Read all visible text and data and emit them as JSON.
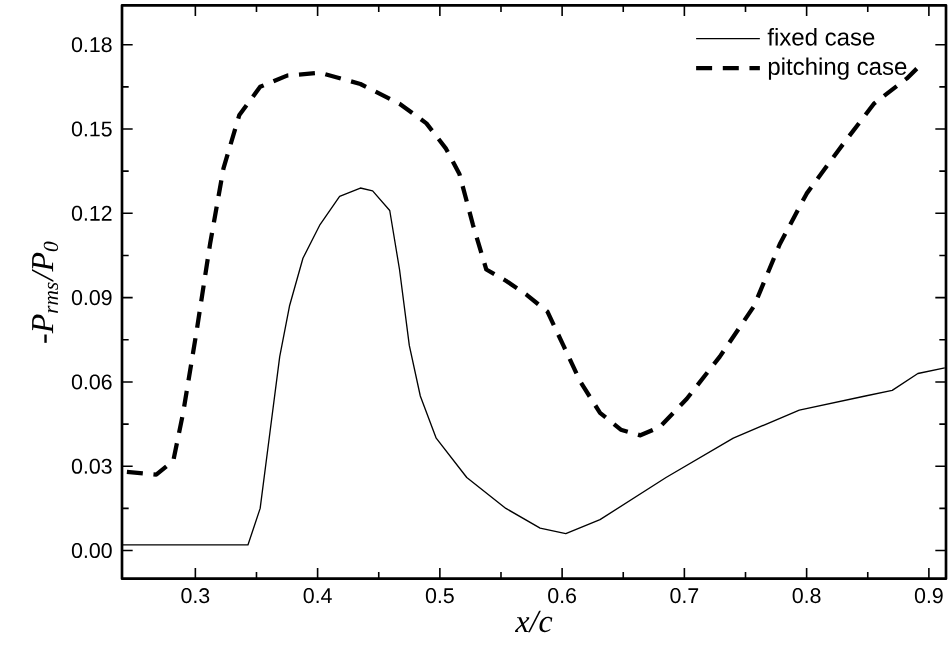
{
  "chart_data": {
    "type": "line",
    "xlabel": "x/c",
    "ylabel": "-P$_{rms}$/P$_{0}$",
    "xlim": [
      0.24,
      0.914
    ],
    "ylim": [
      -0.01,
      0.194
    ],
    "xticks": [
      0.3,
      0.4,
      0.5,
      0.6,
      0.7,
      0.8,
      0.9
    ],
    "yticks": [
      {
        "value": 0,
        "label": "0.00"
      },
      {
        "value": 0.03,
        "label": "0.03"
      },
      {
        "value": 0.06,
        "label": "0.06"
      },
      {
        "value": 0.09,
        "label": "0.09"
      },
      {
        "value": 0.12,
        "label": "0.12"
      },
      {
        "value": 0.15,
        "label": "0.15"
      },
      {
        "value": 0.18,
        "label": "0.18"
      }
    ],
    "legend": "top right",
    "grid": false,
    "marker": "none",
    "series": [
      {
        "name": "fixed case",
        "color": "#000000",
        "line_style": "solid",
        "x": [
          0.24,
          0.343,
          0.353,
          0.361,
          0.369,
          0.377,
          0.388,
          0.402,
          0.418,
          0.435,
          0.445,
          0.459,
          0.467,
          0.475,
          0.484,
          0.497,
          0.522,
          0.554,
          0.582,
          0.603,
          0.631,
          0.685,
          0.74,
          0.794,
          0.848,
          0.87,
          0.891,
          0.913
        ],
        "values": [
          0.002,
          0.002,
          0.015,
          0.042,
          0.069,
          0.087,
          0.104,
          0.116,
          0.126,
          0.129,
          0.128,
          0.121,
          0.1,
          0.073,
          0.055,
          0.04,
          0.026,
          0.015,
          0.008,
          0.006,
          0.011,
          0.026,
          0.04,
          0.05,
          0.055,
          0.057,
          0.063,
          0.065
        ]
      },
      {
        "name": "pitching case",
        "color": "#000000",
        "line_style": "dashed",
        "x": [
          0.244,
          0.268,
          0.282,
          0.29,
          0.301,
          0.312,
          0.323,
          0.336,
          0.353,
          0.375,
          0.402,
          0.435,
          0.467,
          0.489,
          0.505,
          0.516,
          0.527,
          0.538,
          0.554,
          0.571,
          0.588,
          0.601,
          0.615,
          0.631,
          0.648,
          0.664,
          0.68,
          0.702,
          0.729,
          0.757,
          0.778,
          0.8,
          0.827,
          0.855,
          0.882,
          0.896
        ],
        "values": [
          0.028,
          0.027,
          0.032,
          0.049,
          0.078,
          0.109,
          0.136,
          0.155,
          0.165,
          0.169,
          0.17,
          0.166,
          0.159,
          0.152,
          0.143,
          0.134,
          0.116,
          0.1,
          0.096,
          0.091,
          0.085,
          0.073,
          0.06,
          0.049,
          0.043,
          0.041,
          0.044,
          0.054,
          0.069,
          0.087,
          0.109,
          0.127,
          0.143,
          0.159,
          0.168,
          0.174
        ]
      }
    ]
  }
}
